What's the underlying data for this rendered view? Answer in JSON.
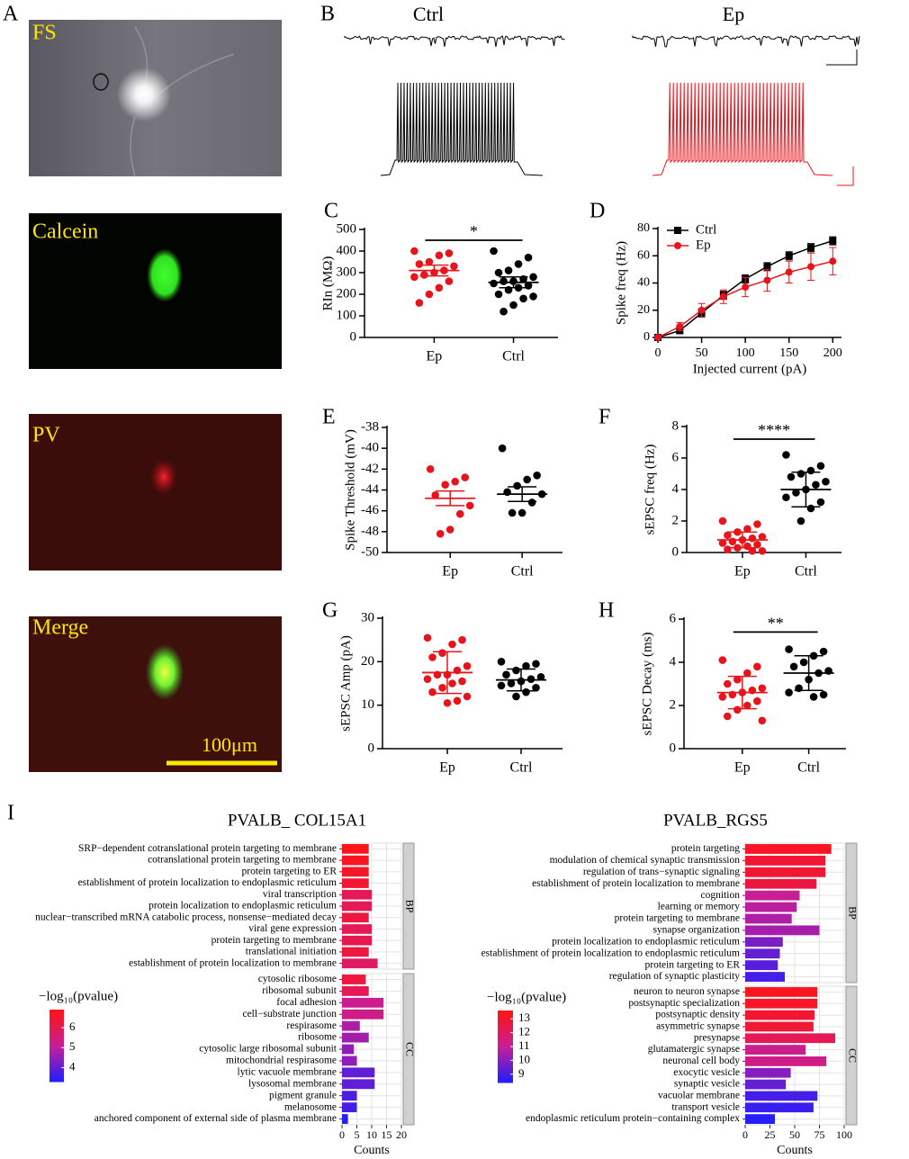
{
  "images": {
    "panel": "A",
    "labels": [
      "FS",
      "Calcein",
      "PV",
      "Merge"
    ],
    "scale_bar": "100μm"
  },
  "traces": {
    "panel": "B",
    "titles": [
      "Ctrl",
      "Ep"
    ]
  },
  "chart_data": [
    {
      "type": "dot",
      "panel": "C",
      "ylabel": "RIn (MΩ)",
      "categories": [
        "Ep",
        "Ctrl"
      ],
      "colors": [
        "#e8141b",
        "#000000"
      ],
      "ylim": [
        0,
        500
      ],
      "yticks": [
        0,
        100,
        200,
        300,
        400,
        500
      ],
      "annotation": "*",
      "points": [
        [
          400,
          390,
          380,
          350,
          340,
          330,
          310,
          300,
          290,
          280,
          260,
          230,
          200,
          160
        ],
        [
          400,
          370,
          340,
          310,
          300,
          280,
          270,
          260,
          260,
          250,
          240,
          230,
          220,
          200,
          190,
          180,
          150,
          120
        ]
      ],
      "means": [
        310,
        255
      ],
      "errors": [
        25,
        25
      ]
    },
    {
      "type": "line",
      "panel": "D",
      "xlabel": "Injected current (pA)",
      "ylabel": "Spike freq (Hz)",
      "legend": "upper left",
      "x": [
        0,
        25,
        50,
        75,
        100,
        125,
        150,
        175,
        200
      ],
      "xlim": [
        0,
        210
      ],
      "xticks": [
        0,
        50,
        100,
        150,
        200
      ],
      "ylim": [
        0,
        80
      ],
      "yticks": [
        0,
        20,
        40,
        60,
        80
      ],
      "series": [
        {
          "name": "Ctrl",
          "color": "#000000",
          "marker": "square",
          "values": [
            0,
            5,
            18,
            31,
            43,
            52,
            60,
            66,
            71
          ],
          "errors": [
            0,
            2,
            3,
            3,
            3,
            3,
            3,
            3,
            3
          ]
        },
        {
          "name": "Ep",
          "color": "#e8141b",
          "marker": "circle",
          "values": [
            0,
            8,
            20,
            30,
            37,
            42,
            48,
            52,
            56
          ],
          "errors": [
            0,
            3,
            5,
            5,
            7,
            8,
            8,
            10,
            10
          ]
        }
      ]
    },
    {
      "type": "dot",
      "panel": "E",
      "ylabel": "Spike Threshold (mV)",
      "categories": [
        "Ep",
        "Ctrl"
      ],
      "colors": [
        "#e8141b",
        "#000000"
      ],
      "ylim": [
        -50,
        -38
      ],
      "yticks": [
        -50,
        -48,
        -46,
        -44,
        -42,
        -40,
        -38
      ],
      "points": [
        [
          -42,
          -42.8,
          -43.2,
          -43.5,
          -44.5,
          -45.5,
          -46.3,
          -47.8,
          -48.2
        ],
        [
          -40,
          -42.6,
          -43,
          -43.6,
          -44.2,
          -44.4,
          -45.2,
          -46.2,
          -46.2
        ]
      ],
      "means": [
        -44.8,
        -44.4
      ],
      "errors": [
        0.7,
        0.7
      ]
    },
    {
      "type": "dot",
      "panel": "F",
      "ylabel": "sEPSC freq (Hz)",
      "categories": [
        "Ep",
        "Ctrl"
      ],
      "colors": [
        "#e8141b",
        "#000000"
      ],
      "ylim": [
        0,
        8
      ],
      "yticks": [
        0,
        2,
        4,
        6,
        8
      ],
      "annotation": "****",
      "points": [
        [
          2.0,
          1.8,
          1.5,
          1.3,
          1.1,
          1.0,
          0.9,
          0.8,
          0.7,
          0.6,
          0.5,
          0.4,
          0.3,
          0.2,
          0.1,
          0.1
        ],
        [
          6.2,
          5.5,
          5.2,
          5.0,
          4.8,
          4.5,
          4.3,
          4.0,
          3.8,
          3.5,
          3.2,
          2.8,
          2.0
        ]
      ],
      "means": [
        0.8,
        4.0
      ],
      "errors": [
        0.5,
        1.1
      ]
    },
    {
      "type": "dot",
      "panel": "G",
      "ylabel": "sEPSC Amp (pA)",
      "categories": [
        "Ep",
        "Ctrl"
      ],
      "colors": [
        "#e8141b",
        "#000000"
      ],
      "ylim": [
        0,
        30
      ],
      "yticks": [
        0,
        10,
        20,
        30
      ],
      "points": [
        [
          25.5,
          25,
          24,
          22,
          21,
          19,
          18,
          17,
          17,
          16,
          15.5,
          15,
          14,
          13,
          12,
          11,
          10.5
        ],
        [
          20,
          19.5,
          19,
          18,
          17,
          16.5,
          16,
          15.5,
          15,
          14.5,
          14,
          13,
          12
        ]
      ],
      "means": [
        17.5,
        15.8
      ],
      "errors": [
        4.8,
        2.5
      ]
    },
    {
      "type": "dot",
      "panel": "H",
      "ylabel": "sEPSC Decay (ms)",
      "categories": [
        "Ep",
        "Ctrl"
      ],
      "colors": [
        "#e8141b",
        "#000000"
      ],
      "ylim": [
        0,
        6
      ],
      "yticks": [
        0,
        2,
        4,
        6
      ],
      "annotation": "**",
      "points": [
        [
          4.1,
          3.8,
          3.5,
          3.2,
          3.0,
          2.8,
          2.7,
          2.6,
          2.5,
          2.4,
          2.2,
          2.0,
          1.8,
          1.5,
          1.3
        ],
        [
          4.6,
          4.5,
          4.3,
          4.0,
          3.8,
          3.6,
          3.5,
          3.2,
          2.8,
          2.6,
          2.5,
          2.4
        ]
      ],
      "means": [
        2.6,
        3.5
      ],
      "errors": [
        0.75,
        0.8
      ]
    },
    {
      "type": "barh",
      "panel": "I",
      "title": "PVALB_ COL15A1",
      "xlabel": "Counts",
      "xlim": [
        0,
        20
      ],
      "xticks": [
        0,
        5,
        10,
        15,
        20
      ],
      "grid": true,
      "colorbar": {
        "label": "−log₁₀(pvalue)",
        "lim": [
          3.3,
          6.9
        ],
        "ticks": [
          4,
          5,
          6
        ],
        "colors": [
          "#1e1eff",
          "#c81e96",
          "#ff1414"
        ]
      },
      "facets": [
        {
          "label": "BP",
          "categories": [
            "SRP−dependent cotranslational protein targeting to membrane",
            "cotranslational protein targeting to membrane",
            "protein targeting to ER",
            "establishment of protein localization to endoplasmic reticulum",
            "viral transcription",
            "protein localization to endoplasmic reticulum",
            "nuclear−transcribed mRNA catabolic process, nonsense−mediated decay",
            "viral gene expression",
            "protein targeting to membrane",
            "translational initiation",
            "establishment of protein localization to membrane"
          ],
          "values": [
            9,
            9,
            9,
            9,
            10,
            10,
            9,
            10,
            10,
            9,
            12
          ],
          "color_values": [
            6.8,
            6.7,
            6.6,
            6.5,
            6.0,
            6.0,
            6.3,
            6.0,
            6.1,
            6.3,
            5.8
          ]
        },
        {
          "label": "CC",
          "categories": [
            "cytosolic ribosome",
            "ribosomal subunit",
            "focal adhesion",
            "cell−substrate junction",
            "respirasome",
            "ribosome",
            "cytosolic large ribosomal subunit",
            "mitochondrial respirasome",
            "lytic vacuole membrane",
            "lysosomal membrane",
            "pigment granule",
            "melanosome",
            "anchored component of external side of plasma membrane"
          ],
          "values": [
            8,
            9,
            14,
            14,
            6,
            9,
            4,
            5,
            11,
            11,
            5,
            5,
            2
          ],
          "color_values": [
            6.3,
            6.0,
            5.2,
            5.3,
            4.8,
            4.7,
            4.5,
            4.5,
            4.0,
            4.0,
            3.8,
            3.7,
            3.4
          ]
        }
      ]
    },
    {
      "type": "barh",
      "title": "PVALB_RGS5",
      "xlabel": "Counts",
      "xlim": [
        0,
        100
      ],
      "xticks": [
        0,
        25,
        50,
        75,
        100
      ],
      "grid": true,
      "colorbar": {
        "label": "−log₁₀(pvalue)",
        "lim": [
          8.4,
          13.6
        ],
        "ticks": [
          9,
          10,
          11,
          12,
          13
        ],
        "colors": [
          "#1e1eff",
          "#c81e96",
          "#ff1414"
        ]
      },
      "facets": [
        {
          "label": "BP",
          "categories": [
            "protein targeting",
            "modulation of chemical synaptic transmission",
            "regulation of trans−synaptic signaling",
            "establishment of protein localization to membrane",
            "cognition",
            "learning or memory",
            "protein targeting to membrane",
            "synapse organization",
            "protein localization to endoplasmic reticulum",
            "establishment of protein localization to endoplasmic reticulum",
            "protein targeting to ER",
            "regulation of synaptic plasticity"
          ],
          "values": [
            87,
            81,
            81,
            72,
            55,
            52,
            47,
            75,
            38,
            35,
            33,
            40
          ],
          "color_values": [
            13.3,
            13.0,
            13.0,
            12.7,
            11.0,
            10.8,
            10.6,
            10.5,
            9.8,
            9.5,
            9.3,
            9.0
          ]
        },
        {
          "label": "CC",
          "categories": [
            "neuron to neuron synapse",
            "postsynaptic specialization",
            "postsynaptic density",
            "asymmetric synapse",
            "presynapse",
            "glutamatergic synapse",
            "neuronal cell body",
            "exocytic vesicle",
            "synaptic vesicle",
            "vacuolar membrane",
            "transport vesicle",
            "endoplasmic reticulum protein−containing complex"
          ],
          "values": [
            73,
            73,
            70,
            69,
            91,
            61,
            82,
            46,
            41,
            73,
            69,
            30
          ],
          "color_values": [
            13.4,
            13.2,
            13.0,
            12.9,
            12.3,
            11.2,
            11.3,
            10.0,
            9.5,
            9.0,
            8.8,
            8.5
          ]
        }
      ]
    }
  ]
}
